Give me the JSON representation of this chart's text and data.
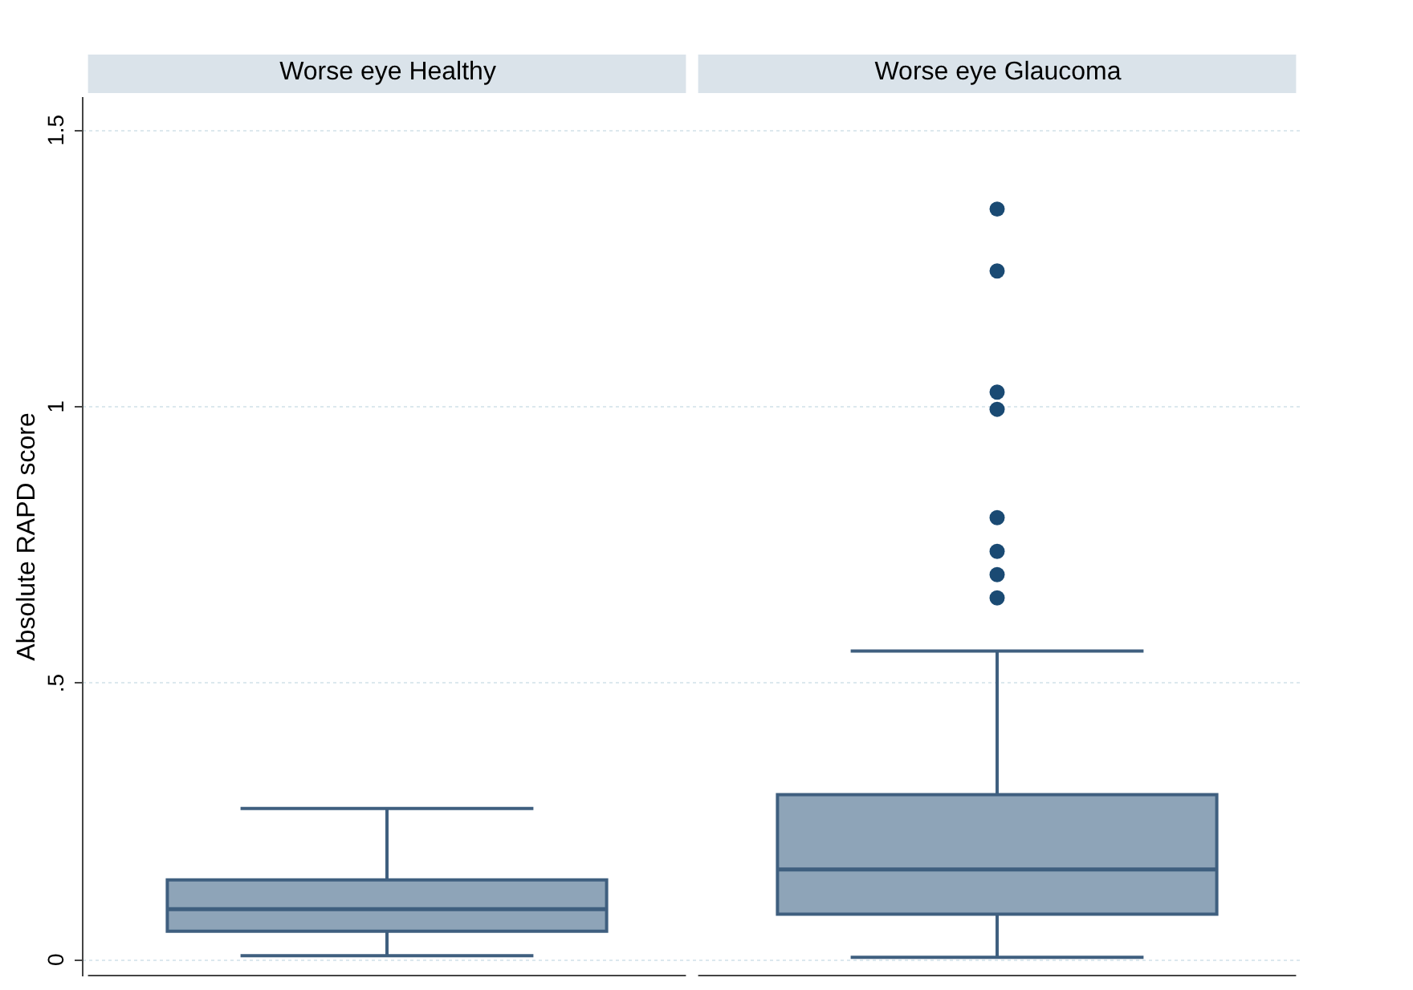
{
  "chart_data": {
    "type": "box",
    "ylabel": "Absolute RAPD score",
    "categories": [
      "Worse eye Healthy",
      "Worse eye Glaucoma"
    ],
    "color": "#8ea4b8",
    "boxes": [
      {
        "low": 0.006,
        "q1": 0.05,
        "median": 0.09,
        "q3": 0.143,
        "high": 0.272
      },
      {
        "low": 0.003,
        "q1": 0.081,
        "median": 0.162,
        "q3": 0.297,
        "high": 0.557,
        "outliers": [
          1.356,
          1.244,
          1.025,
          0.994,
          0.798,
          0.737,
          0.695,
          0.653
        ]
      }
    ],
    "ylim": [
      -0.03,
      1.56
    ],
    "yticks": [
      0,
      {
        "value": 0.5,
        "label": ".5"
      },
      1,
      1.5
    ],
    "grid": "y"
  }
}
